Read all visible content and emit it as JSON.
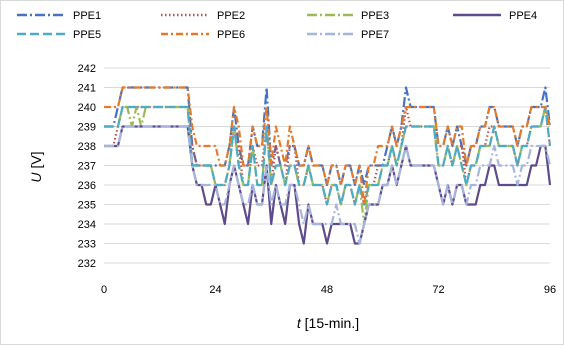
{
  "chart_data": {
    "type": "line",
    "xlabel_italic": "t",
    "xlabel_rest": " [15-min.]",
    "ylabel_italic": "U",
    "ylabel_rest": " [V]",
    "xlim": [
      0,
      96
    ],
    "ylim": [
      232,
      242
    ],
    "x_ticks": [
      "0",
      "24",
      "48",
      "72",
      "96"
    ],
    "y_ticks": [
      "232",
      "233",
      "234",
      "235",
      "236",
      "237",
      "238",
      "239",
      "240",
      "241",
      "242"
    ],
    "grid": "horizontal",
    "legend_position": "top",
    "series": [
      {
        "name": "PPE1",
        "color": "#4472c4",
        "dash": "long-dash-dot",
        "values": [
          239,
          239,
          239,
          240,
          241,
          241,
          241,
          241,
          241,
          241,
          241,
          241,
          241,
          241,
          241,
          241,
          241,
          241,
          241,
          238,
          237,
          237,
          237,
          237,
          237,
          237,
          237,
          238,
          240,
          238,
          237,
          237,
          239,
          238,
          238,
          241,
          237,
          238,
          237,
          237,
          238,
          238,
          237,
          237,
          238,
          237,
          237,
          237,
          236,
          237,
          237,
          236,
          237,
          237,
          236,
          237,
          236,
          237,
          237,
          237,
          237,
          238,
          239,
          238,
          239,
          241,
          240,
          240,
          240,
          240,
          240,
          240,
          238,
          238,
          239,
          238,
          239,
          238,
          237,
          238,
          238,
          239,
          239,
          240,
          240,
          239,
          239,
          239,
          239,
          238,
          239,
          239,
          240,
          240,
          240,
          241,
          239
        ]
      },
      {
        "name": "PPE2",
        "color": "#c0504d",
        "dash": "dotted",
        "values": [
          238,
          238,
          238,
          239,
          240,
          240,
          240,
          240,
          240,
          240,
          240,
          240,
          240,
          240,
          240,
          240,
          240,
          240,
          240,
          238,
          237,
          237,
          237,
          237,
          236,
          236,
          236,
          237,
          239,
          238,
          236,
          236,
          238,
          237,
          237,
          239,
          236,
          238,
          237,
          236,
          238,
          238,
          236,
          236,
          237,
          236,
          236,
          236,
          235,
          236,
          236,
          235,
          236,
          236,
          235,
          236,
          235,
          236,
          236,
          237,
          237,
          237,
          238,
          237,
          238,
          240,
          239,
          239,
          239,
          239,
          239,
          239,
          237,
          237,
          238,
          237,
          238,
          238,
          236,
          237,
          237,
          238,
          238,
          239,
          239,
          238,
          238,
          238,
          238,
          237,
          238,
          238,
          239,
          239,
          239,
          240,
          238
        ]
      },
      {
        "name": "PPE3",
        "color": "#9bbb59",
        "dash": "long-dash-dot",
        "values": [
          239,
          239,
          239,
          239,
          240,
          240,
          239,
          240,
          239,
          240,
          240,
          240,
          240,
          240,
          240,
          240,
          240,
          240,
          240,
          237,
          237,
          237,
          237,
          237,
          236,
          236,
          236,
          237,
          239,
          237,
          236,
          236,
          238,
          236,
          236,
          239,
          236,
          237,
          237,
          236,
          237,
          237,
          236,
          236,
          237,
          236,
          236,
          236,
          235,
          236,
          236,
          235,
          236,
          236,
          235,
          236,
          234,
          236,
          236,
          236,
          237,
          237,
          238,
          237,
          238,
          239,
          239,
          239,
          239,
          239,
          239,
          239,
          237,
          237,
          238,
          237,
          238,
          237,
          236,
          237,
          237,
          238,
          238,
          238,
          239,
          238,
          238,
          238,
          238,
          237,
          238,
          238,
          239,
          239,
          239,
          240,
          239
        ]
      },
      {
        "name": "PPE4",
        "color": "#5f4b8b",
        "dash": "solid",
        "values": [
          238,
          238,
          238,
          238,
          239,
          239,
          239,
          239,
          239,
          239,
          239,
          239,
          239,
          239,
          239,
          239,
          239,
          239,
          239,
          237,
          236,
          236,
          235,
          235,
          236,
          235,
          234,
          236,
          237,
          236,
          235,
          234,
          236,
          235,
          235,
          237,
          234,
          236,
          235,
          234,
          236,
          236,
          234,
          233,
          235,
          234,
          234,
          234,
          233,
          234,
          234,
          234,
          234,
          234,
          233,
          233,
          234,
          235,
          235,
          235,
          236,
          236,
          237,
          236,
          237,
          238,
          237,
          237,
          237,
          237,
          237,
          237,
          236,
          235,
          236,
          235,
          236,
          236,
          235,
          235,
          235,
          236,
          236,
          237,
          237,
          236,
          236,
          236,
          236,
          236,
          236,
          236,
          237,
          237,
          238,
          238,
          236
        ]
      },
      {
        "name": "PPE5",
        "color": "#4bacc6",
        "dash": "long-dash",
        "values": [
          239,
          239,
          239,
          239,
          240,
          240,
          240,
          240,
          240,
          240,
          240,
          240,
          240,
          240,
          240,
          240,
          240,
          240,
          240,
          237,
          237,
          237,
          237,
          237,
          236,
          236,
          236,
          237,
          239,
          237,
          236,
          236,
          238,
          236,
          236,
          239,
          236,
          237,
          237,
          236,
          237,
          237,
          236,
          236,
          237,
          236,
          236,
          236,
          235,
          236,
          236,
          235,
          236,
          236,
          235,
          236,
          235,
          236,
          236,
          236,
          237,
          237,
          238,
          237,
          238,
          239,
          239,
          239,
          239,
          239,
          239,
          239,
          237,
          237,
          238,
          237,
          238,
          237,
          236,
          237,
          237,
          238,
          238,
          238,
          239,
          238,
          238,
          238,
          238,
          237,
          238,
          238,
          239,
          239,
          239,
          240,
          238
        ]
      },
      {
        "name": "PPE6",
        "color": "#e57b2a",
        "dash": "dash-dot",
        "values": [
          240,
          240,
          240,
          240,
          241,
          241,
          241,
          241,
          241,
          241,
          241,
          241,
          241,
          241,
          241,
          241,
          241,
          241,
          241,
          239,
          238,
          238,
          238,
          238,
          238,
          237,
          237,
          238,
          240,
          239,
          237,
          237,
          239,
          238,
          238,
          240,
          237,
          239,
          238,
          237,
          239,
          238,
          237,
          237,
          238,
          237,
          237,
          237,
          236,
          237,
          237,
          236,
          237,
          237,
          236,
          237,
          235,
          237,
          237,
          238,
          238,
          238,
          239,
          238,
          239,
          240,
          240,
          240,
          240,
          240,
          240,
          240,
          238,
          238,
          239,
          238,
          239,
          239,
          237,
          238,
          238,
          239,
          239,
          240,
          240,
          239,
          239,
          239,
          239,
          238,
          239,
          239,
          240,
          240,
          240,
          240,
          239
        ]
      },
      {
        "name": "PPE7",
        "color": "#a6b5db",
        "dash": "long-dash-dot",
        "values": [
          238,
          238,
          238,
          238,
          239,
          239,
          239,
          239,
          239,
          239,
          239,
          239,
          239,
          239,
          239,
          239,
          239,
          239,
          239,
          237,
          236,
          236,
          236,
          236,
          236,
          235,
          235,
          236,
          237,
          236,
          235,
          235,
          236,
          235,
          235,
          237,
          235,
          236,
          235,
          235,
          236,
          236,
          235,
          234,
          235,
          234,
          234,
          234,
          234,
          234,
          235,
          234,
          234,
          234,
          234,
          233,
          234,
          235,
          235,
          235,
          236,
          236,
          237,
          236,
          237,
          238,
          237,
          237,
          237,
          237,
          237,
          237,
          236,
          235,
          236,
          235,
          236,
          236,
          235,
          236,
          236,
          237,
          237,
          237,
          238,
          237,
          237,
          237,
          237,
          236,
          237,
          237,
          238,
          238,
          238,
          238,
          237
        ]
      }
    ]
  }
}
